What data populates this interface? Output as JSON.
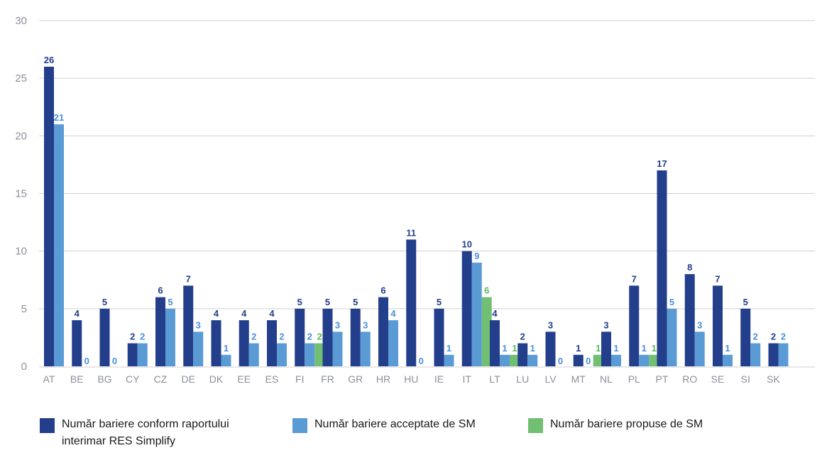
{
  "chart_data": {
    "type": "bar",
    "categories": [
      "AT",
      "BE",
      "BG",
      "CY",
      "CZ",
      "DE",
      "DK",
      "EE",
      "ES",
      "FI",
      "FR",
      "GR",
      "HR",
      "HU",
      "IE",
      "IT",
      "LT",
      "LU",
      "LV",
      "MT",
      "NL",
      "PL",
      "PT",
      "RO",
      "SE",
      "SI",
      "SK"
    ],
    "series": [
      {
        "name": "Număr bariere conform raportului interimar RES Simplify",
        "color": "#233e8b",
        "label_color": "#233e8b",
        "values": [
          26,
          4,
          5,
          2,
          6,
          7,
          4,
          4,
          4,
          5,
          5,
          5,
          6,
          11,
          5,
          10,
          4,
          2,
          3,
          1,
          3,
          7,
          17,
          8,
          7,
          5,
          2
        ]
      },
      {
        "name": "Număr bariere acceptate de SM",
        "color": "#5b9bd5",
        "label_color": "#4a90d9",
        "values": [
          21,
          0,
          0,
          2,
          5,
          3,
          1,
          2,
          2,
          2,
          3,
          3,
          4,
          0,
          1,
          9,
          1,
          1,
          0,
          0,
          1,
          1,
          5,
          3,
          1,
          2,
          2
        ]
      },
      {
        "name": "Număr bariere propuse de SM",
        "color": "#70bf73",
        "label_color": "#5cb85c",
        "values": [
          null,
          null,
          null,
          null,
          null,
          null,
          null,
          null,
          null,
          2,
          null,
          null,
          null,
          null,
          null,
          6,
          1,
          null,
          null,
          1,
          null,
          1,
          null,
          null,
          null,
          null,
          null
        ]
      }
    ],
    "ylim": [
      0,
      30
    ],
    "yticks": [
      0,
      5,
      10,
      15,
      20,
      25,
      30
    ],
    "grid": true,
    "legend_position": "bottom"
  },
  "legend": {
    "item1_line1": "Număr bariere conform raportului",
    "item1_line2": "interimar RES Simplify",
    "item2": "Număr bariere acceptate de SM",
    "item3": "Număr bariere propuse de SM"
  }
}
